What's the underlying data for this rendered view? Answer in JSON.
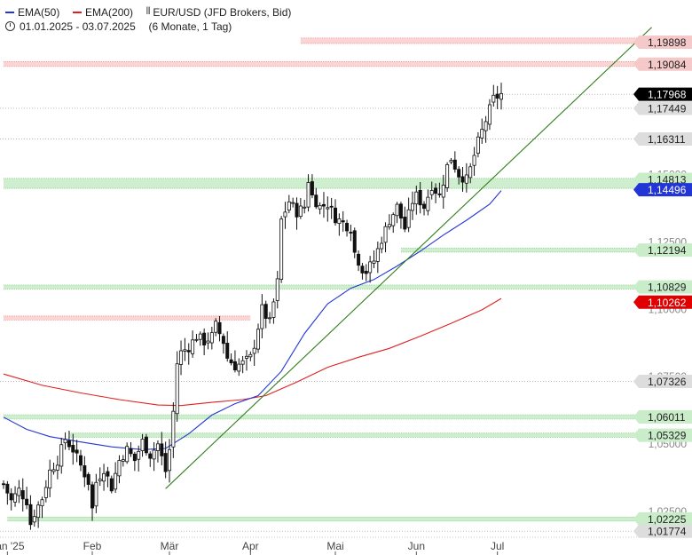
{
  "header": {
    "legend": [
      {
        "label": "EMA(50)",
        "color": "#2236d6"
      },
      {
        "label": "EMA(200)",
        "color": "#e02020"
      }
    ],
    "symbol": "EUR/USD (JFD Brokers, Bid)",
    "symbol_icon": "candlestick-icon",
    "date_icon": "clock-icon",
    "date_range": "01.01.2025 - 03.07.2025",
    "period": "(6 Monate, 1 Tag)"
  },
  "chart_data": {
    "type": "candlestick",
    "title": "EUR/USD (JFD Brokers, Bid)",
    "ylim": [
      1.0155,
      1.2008
    ],
    "xlabels": [
      {
        "label": "Jan '25",
        "day": 1
      },
      {
        "label": "Feb",
        "day": 23
      },
      {
        "label": "Mär",
        "day": 43
      },
      {
        "label": "Apr",
        "day": 64
      },
      {
        "label": "Mai",
        "day": 86
      },
      {
        "label": "Jun",
        "day": 107
      },
      {
        "label": "Jul",
        "day": 128
      }
    ],
    "yticks_partial": [
      "1,15000",
      "1,12500",
      "1,10000",
      "1,07500",
      "1,05000",
      "1,02500"
    ],
    "price_labels": [
      {
        "value": 1.19898,
        "label": "1,19898",
        "style": "resistance"
      },
      {
        "value": 1.19084,
        "label": "1,19084",
        "style": "resistance"
      },
      {
        "value": 1.17968,
        "label": "1,17968",
        "style": "current"
      },
      {
        "value": 1.17449,
        "label": "1,17449",
        "style": "level"
      },
      {
        "value": 1.16311,
        "label": "1,16311",
        "style": "level"
      },
      {
        "value": 1.14813,
        "label": "1,14813",
        "style": "support"
      },
      {
        "value": 1.14496,
        "label": "1,14496",
        "style": "ema50"
      },
      {
        "value": 1.12194,
        "label": "1,12194",
        "style": "support"
      },
      {
        "value": 1.10829,
        "label": "1,10829",
        "style": "support"
      },
      {
        "value": 1.10262,
        "label": "1,10262",
        "style": "ema200"
      },
      {
        "value": 1.07326,
        "label": "1,07326",
        "style": "level"
      },
      {
        "value": 1.06011,
        "label": "1,06011",
        "style": "support"
      },
      {
        "value": 1.05329,
        "label": "1,05329",
        "style": "support"
      },
      {
        "value": 1.02225,
        "label": "1,02225",
        "style": "support"
      },
      {
        "value": 1.01774,
        "label": "1,01774",
        "style": "level"
      }
    ],
    "zones": [
      {
        "lo": 1.1985,
        "hi": 1.2005,
        "kind": "resistance",
        "x_from_day": 77
      },
      {
        "lo": 1.19,
        "hi": 1.1918,
        "kind": "resistance",
        "x_from_day": 0
      },
      {
        "lo": 1.1448,
        "hi": 1.1485,
        "kind": "support",
        "x_from_day": 0
      },
      {
        "lo": 1.1212,
        "hi": 1.1227,
        "kind": "support",
        "x_from_day": 103
      },
      {
        "lo": 1.1075,
        "hi": 1.109,
        "kind": "support",
        "x_from_day": 0
      },
      {
        "lo": 1.096,
        "hi": 1.0975,
        "kind": "resistance",
        "x_from_day": 0,
        "x_to_day": 64
      },
      {
        "lo": 1.0593,
        "hi": 1.0609,
        "kind": "support",
        "x_from_day": 0
      },
      {
        "lo": 1.0525,
        "hi": 1.0541,
        "kind": "support",
        "x_from_day": 17
      },
      {
        "lo": 1.0215,
        "hi": 1.023,
        "kind": "support",
        "x_from_day": 1
      }
    ],
    "trendline": {
      "from": {
        "day": 42,
        "value": 1.0335
      },
      "to": {
        "day": 168,
        "value": 1.2045
      },
      "color": "#2e7d1a"
    },
    "ema50": [
      {
        "day": 0,
        "value": 1.06
      },
      {
        "day": 6,
        "value": 1.0555
      },
      {
        "day": 12,
        "value": 1.0528
      },
      {
        "day": 20,
        "value": 1.0508
      },
      {
        "day": 28,
        "value": 1.049
      },
      {
        "day": 36,
        "value": 1.048
      },
      {
        "day": 42,
        "value": 1.0484
      },
      {
        "day": 48,
        "value": 1.0538
      },
      {
        "day": 54,
        "value": 1.0608
      },
      {
        "day": 60,
        "value": 1.065
      },
      {
        "day": 66,
        "value": 1.068
      },
      {
        "day": 72,
        "value": 1.077
      },
      {
        "day": 78,
        "value": 1.091
      },
      {
        "day": 84,
        "value": 1.102
      },
      {
        "day": 90,
        "value": 1.1078
      },
      {
        "day": 96,
        "value": 1.111
      },
      {
        "day": 102,
        "value": 1.116
      },
      {
        "day": 108,
        "value": 1.1215
      },
      {
        "day": 114,
        "value": 1.1275
      },
      {
        "day": 120,
        "value": 1.133
      },
      {
        "day": 126,
        "value": 1.139
      },
      {
        "day": 129,
        "value": 1.144
      }
    ],
    "ema200": [
      {
        "day": 0,
        "value": 1.076
      },
      {
        "day": 10,
        "value": 1.0718
      },
      {
        "day": 20,
        "value": 1.069
      },
      {
        "day": 30,
        "value": 1.0665
      },
      {
        "day": 40,
        "value": 1.0645
      },
      {
        "day": 46,
        "value": 1.0643
      },
      {
        "day": 54,
        "value": 1.0655
      },
      {
        "day": 62,
        "value": 1.0665
      },
      {
        "day": 68,
        "value": 1.068
      },
      {
        "day": 76,
        "value": 1.073
      },
      {
        "day": 84,
        "value": 1.0785
      },
      {
        "day": 92,
        "value": 1.0822
      },
      {
        "day": 100,
        "value": 1.0855
      },
      {
        "day": 108,
        "value": 1.09
      },
      {
        "day": 116,
        "value": 1.0948
      },
      {
        "day": 124,
        "value": 1.0998
      },
      {
        "day": 129,
        "value": 1.104
      }
    ],
    "close_path": [
      {
        "day": 0,
        "value": 1.0352
      },
      {
        "day": 2,
        "value": 1.029
      },
      {
        "day": 4,
        "value": 1.033
      },
      {
        "day": 6,
        "value": 1.029
      },
      {
        "day": 7,
        "value": 1.0205
      },
      {
        "day": 8,
        "value": 1.0245
      },
      {
        "day": 10,
        "value": 1.03
      },
      {
        "day": 12,
        "value": 1.04
      },
      {
        "day": 14,
        "value": 1.044
      },
      {
        "day": 16,
        "value": 1.052
      },
      {
        "day": 18,
        "value": 1.048
      },
      {
        "day": 20,
        "value": 1.042
      },
      {
        "day": 22,
        "value": 1.036
      },
      {
        "day": 23,
        "value": 1.026
      },
      {
        "day": 24,
        "value": 1.036
      },
      {
        "day": 26,
        "value": 1.041
      },
      {
        "day": 28,
        "value": 1.034
      },
      {
        "day": 30,
        "value": 1.044
      },
      {
        "day": 32,
        "value": 1.048
      },
      {
        "day": 34,
        "value": 1.044
      },
      {
        "day": 36,
        "value": 1.051
      },
      {
        "day": 38,
        "value": 1.046
      },
      {
        "day": 40,
        "value": 1.05
      },
      {
        "day": 42,
        "value": 1.04
      },
      {
        "day": 43,
        "value": 1.048
      },
      {
        "day": 44,
        "value": 1.062
      },
      {
        "day": 45,
        "value": 1.08
      },
      {
        "day": 46,
        "value": 1.084
      },
      {
        "day": 48,
        "value": 1.086
      },
      {
        "day": 50,
        "value": 1.09
      },
      {
        "day": 52,
        "value": 1.088
      },
      {
        "day": 54,
        "value": 1.09
      },
      {
        "day": 55,
        "value": 1.094
      },
      {
        "day": 57,
        "value": 1.088
      },
      {
        "day": 58,
        "value": 1.082
      },
      {
        "day": 60,
        "value": 1.079
      },
      {
        "day": 62,
        "value": 1.08
      },
      {
        "day": 64,
        "value": 1.082
      },
      {
        "day": 65,
        "value": 1.087
      },
      {
        "day": 67,
        "value": 1.1
      },
      {
        "day": 69,
        "value": 1.095
      },
      {
        "day": 71,
        "value": 1.11
      },
      {
        "day": 72,
        "value": 1.133
      },
      {
        "day": 74,
        "value": 1.14
      },
      {
        "day": 76,
        "value": 1.136
      },
      {
        "day": 78,
        "value": 1.138
      },
      {
        "day": 79,
        "value": 1.148
      },
      {
        "day": 80,
        "value": 1.142
      },
      {
        "day": 82,
        "value": 1.138
      },
      {
        "day": 84,
        "value": 1.139
      },
      {
        "day": 86,
        "value": 1.134
      },
      {
        "day": 88,
        "value": 1.132
      },
      {
        "day": 90,
        "value": 1.13
      },
      {
        "day": 91,
        "value": 1.121
      },
      {
        "day": 93,
        "value": 1.115
      },
      {
        "day": 94,
        "value": 1.114
      },
      {
        "day": 96,
        "value": 1.118
      },
      {
        "day": 98,
        "value": 1.126
      },
      {
        "day": 100,
        "value": 1.133
      },
      {
        "day": 102,
        "value": 1.138
      },
      {
        "day": 104,
        "value": 1.13
      },
      {
        "day": 106,
        "value": 1.14
      },
      {
        "day": 107,
        "value": 1.142
      },
      {
        "day": 109,
        "value": 1.138
      },
      {
        "day": 111,
        "value": 1.146
      },
      {
        "day": 113,
        "value": 1.142
      },
      {
        "day": 115,
        "value": 1.153
      },
      {
        "day": 116,
        "value": 1.156
      },
      {
        "day": 118,
        "value": 1.15
      },
      {
        "day": 120,
        "value": 1.148
      },
      {
        "day": 121,
        "value": 1.152
      },
      {
        "day": 123,
        "value": 1.162
      },
      {
        "day": 125,
        "value": 1.17
      },
      {
        "day": 127,
        "value": 1.178
      },
      {
        "day": 129,
        "value": 1.1797
      }
    ],
    "days_total": 129
  }
}
